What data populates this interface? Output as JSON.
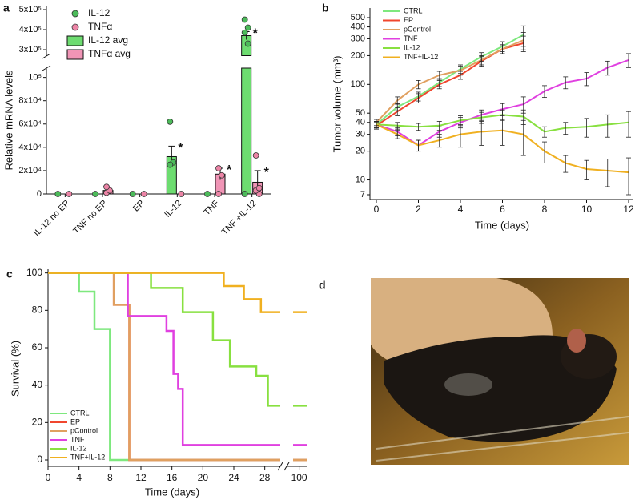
{
  "chart_data": [
    {
      "type": "bar",
      "panel": "a",
      "ylabel": "Relative mRNA levels",
      "categories": [
        "IL-12 no EP",
        "TNF no EP",
        "EP",
        "IL-12",
        "TNF",
        "TNF +IL-12"
      ],
      "axis_segments": [
        {
          "ylim": [
            0,
            108000
          ],
          "yticks": [
            0,
            {
              "value": 20000,
              "label": "2x10⁴"
            },
            {
              "value": 40000,
              "label": "4x10⁴"
            },
            {
              "value": 60000,
              "label": "6x10⁴"
            },
            {
              "value": 80000,
              "label": "8x10⁴"
            },
            {
              "value": 100000,
              "label": "10⁵"
            }
          ]
        },
        {
          "ylim": [
            270000,
            500000
          ],
          "yticks": [
            {
              "value": 300000,
              "label": "3x10⁵"
            },
            {
              "value": 400000,
              "label": "4x10⁵"
            },
            {
              "value": 500000,
              "label": "5x10⁵"
            }
          ]
        }
      ],
      "series": [
        {
          "name": "IL-12",
          "kind": "points",
          "color": "#4cbb5a",
          "values": [
            [
              0
            ],
            [
              0
            ],
            [
              0
            ],
            [
              62000,
              27000,
              25000
            ],
            [
              0
            ],
            [
              450000,
              410000,
              385000,
              330000,
              0
            ]
          ]
        },
        {
          "name": "TNFα",
          "kind": "points",
          "color": "#ec84a6",
          "values": [
            [
              0
            ],
            [
              1000,
              3000,
              6000
            ],
            [
              0
            ],
            [
              0
            ],
            [
              22000,
              16000,
              0
            ],
            [
              33000,
              0,
              3000,
              5000
            ]
          ]
        },
        {
          "name": "IL-12 avg",
          "kind": "bars",
          "color": "#6ddc70",
          "values": [
            0,
            null,
            0,
            32000,
            0,
            370000
          ],
          "errors": [
            null,
            null,
            null,
            9000,
            null,
            20000
          ],
          "value_labels": [
            null,
            null,
            null,
            "*",
            null,
            "*"
          ]
        },
        {
          "name": "TNFα avg",
          "kind": "bars",
          "color": "#f095b6",
          "values": [
            null,
            3000,
            0,
            0,
            17000,
            10000
          ],
          "errors": [
            null,
            null,
            null,
            null,
            5000,
            10000
          ],
          "value_labels": [
            null,
            null,
            null,
            null,
            "*",
            "*"
          ]
        }
      ]
    },
    {
      "type": "line",
      "panel": "b",
      "xlabel": "Time (days)",
      "ylabel": "Tumor volume (mm³)",
      "log_y": true,
      "xlim": [
        0,
        12
      ],
      "xticks": [
        0,
        2,
        4,
        6,
        8,
        10,
        12
      ],
      "ylim": [
        7,
        500
      ],
      "yticks": [
        7,
        10,
        20,
        30,
        40,
        50,
        100,
        200,
        300,
        400,
        500
      ],
      "x": [
        0,
        1,
        2,
        3,
        4,
        5,
        6,
        7,
        8,
        9,
        10,
        11,
        12
      ],
      "series": [
        {
          "name": "CTRL",
          "color": "#7ee87e",
          "values": [
            38,
            58,
            75,
            105,
            145,
            195,
            250,
            330,
            null,
            null,
            null,
            null,
            null
          ],
          "errors": [
            3,
            5,
            8,
            10,
            15,
            20,
            30,
            80,
            null,
            null,
            null,
            null,
            null
          ]
        },
        {
          "name": "EP",
          "color": "#f0462e",
          "values": [
            37,
            52,
            72,
            100,
            125,
            175,
            235,
            270,
            null,
            null,
            null,
            null,
            null
          ],
          "errors": [
            3,
            5,
            8,
            10,
            12,
            20,
            25,
            50,
            null,
            null,
            null,
            null,
            null
          ]
        },
        {
          "name": "pControl",
          "color": "#e0a060",
          "values": [
            40,
            68,
            100,
            125,
            140,
            180,
            235,
            290,
            null,
            null,
            null,
            null,
            null
          ],
          "errors": [
            3,
            6,
            10,
            12,
            15,
            20,
            25,
            60,
            null,
            null,
            null,
            null,
            null
          ]
        },
        {
          "name": "TNF",
          "color": "#e040e0",
          "values": [
            38,
            32,
            23,
            32,
            40,
            48,
            55,
            62,
            85,
            105,
            115,
            150,
            180
          ],
          "errors": [
            3,
            3,
            3,
            4,
            5,
            6,
            8,
            12,
            12,
            15,
            18,
            25,
            30
          ]
        },
        {
          "name": "IL-12",
          "color": "#88e040",
          "values": [
            38,
            37,
            36,
            37,
            42,
            45,
            48,
            46,
            32,
            35,
            36,
            38,
            40
          ],
          "errors": [
            3,
            3,
            3,
            4,
            5,
            6,
            6,
            8,
            4,
            5,
            8,
            10,
            12
          ]
        },
        {
          "name": "TNF+IL-12",
          "color": "#f0b020",
          "values": [
            38,
            30,
            23,
            26,
            30,
            32,
            33,
            30,
            20,
            15,
            13,
            12.5,
            12
          ],
          "errors": [
            3,
            3,
            3,
            4,
            8,
            9,
            10,
            12,
            5,
            3,
            3,
            4,
            5
          ]
        }
      ]
    },
    {
      "type": "step",
      "panel": "c",
      "xlabel": "Time (days)",
      "ylabel": "Survival (%)",
      "ylim": [
        -3,
        102
      ],
      "yticks": [
        0,
        20,
        40,
        60,
        80,
        100
      ],
      "axis_segments": [
        {
          "xlim": [
            0,
            30
          ],
          "xticks": [
            0,
            4,
            8,
            12,
            16,
            20,
            24,
            28
          ]
        },
        {
          "xlim": [
            97,
            102
          ],
          "xticks": [
            100
          ]
        }
      ],
      "series": [
        {
          "name": "CTRL",
          "color": "#7ee87e",
          "x": [
            0,
            4,
            6,
            8,
            100
          ],
          "values": [
            100,
            90,
            70,
            0,
            0
          ]
        },
        {
          "name": "EP",
          "color": "#f0462e",
          "x": [
            0,
            8.5,
            10.5,
            100
          ],
          "values": [
            100,
            83,
            0,
            0
          ]
        },
        {
          "name": "pControl",
          "color": "#e0a060",
          "x": [
            0,
            8.5,
            10.5,
            100
          ],
          "values": [
            100,
            83,
            0,
            0
          ]
        },
        {
          "name": "TNF",
          "color": "#e040e0",
          "x": [
            0,
            10.3,
            15.3,
            16.2,
            16.8,
            17.4,
            100
          ],
          "values": [
            100,
            77,
            69,
            46,
            38,
            8,
            8
          ]
        },
        {
          "name": "IL-12",
          "color": "#88e040",
          "x": [
            0,
            13.3,
            17.4,
            21.3,
            23.5,
            26.9,
            28.4,
            100
          ],
          "values": [
            100,
            92,
            79,
            64,
            50,
            45,
            29,
            29
          ]
        },
        {
          "name": "TNF+IL-12",
          "color": "#f0b020",
          "x": [
            0,
            22.7,
            25.3,
            27.5,
            100
          ],
          "values": [
            100,
            93,
            86,
            79,
            79
          ]
        }
      ]
    }
  ],
  "photo_panel": {
    "label": "d"
  }
}
